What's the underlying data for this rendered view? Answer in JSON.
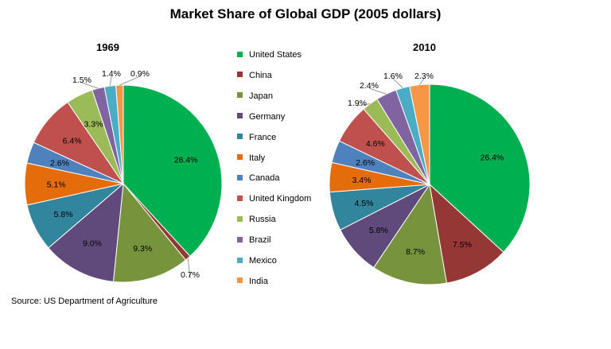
{
  "title": "Market Share of Global GDP (2005 dollars)",
  "source": "Source: US Department of Agriculture",
  "legend": {
    "labels": [
      "United States",
      "China",
      "Japan",
      "Germany",
      "France",
      "Italy",
      "Canada",
      "United Kingdom",
      "Russia",
      "Brazil",
      "Mexico",
      "India"
    ]
  },
  "colors": [
    "#00b050",
    "#953735",
    "#77933c",
    "#604a7b",
    "#31859c",
    "#e46c0a",
    "#4f81bd",
    "#c0504d",
    "#9bbb59",
    "#8064a2",
    "#4bacc6",
    "#f79646"
  ],
  "chart_data": [
    {
      "type": "pie",
      "title": "1969",
      "categories": [
        "United States",
        "China",
        "Japan",
        "Germany",
        "France",
        "Italy",
        "Canada",
        "United Kingdom",
        "Russia",
        "Brazil",
        "Mexico",
        "India"
      ],
      "values": [
        28.4,
        0.7,
        9.3,
        9.0,
        5.8,
        5.1,
        2.6,
        6.4,
        3.3,
        1.5,
        1.4,
        0.9
      ],
      "data_labels": [
        "28.4%",
        "0.7%",
        "9.3%",
        "9.0%",
        "5.8%",
        "5.1%",
        "2.6%",
        "6.4%",
        "3.3%",
        "1.5%",
        "1.4%",
        "0.9%"
      ]
    },
    {
      "type": "pie",
      "title": "2010",
      "categories": [
        "United States",
        "China",
        "Japan",
        "Germany",
        "France",
        "Italy",
        "Canada",
        "United Kingdom",
        "Russia",
        "Brazil",
        "Mexico",
        "India"
      ],
      "values": [
        26.4,
        7.5,
        8.7,
        5.8,
        4.5,
        3.4,
        2.6,
        4.6,
        1.9,
        2.4,
        1.6,
        2.3
      ],
      "data_labels": [
        "26.4%",
        "7.5%",
        "8.7%",
        "5.8%",
        "4.5%",
        "3.4%",
        "2.6%",
        "4.6%",
        "1.9%",
        "2.4%",
        "1.6%",
        "2.3%"
      ]
    }
  ]
}
